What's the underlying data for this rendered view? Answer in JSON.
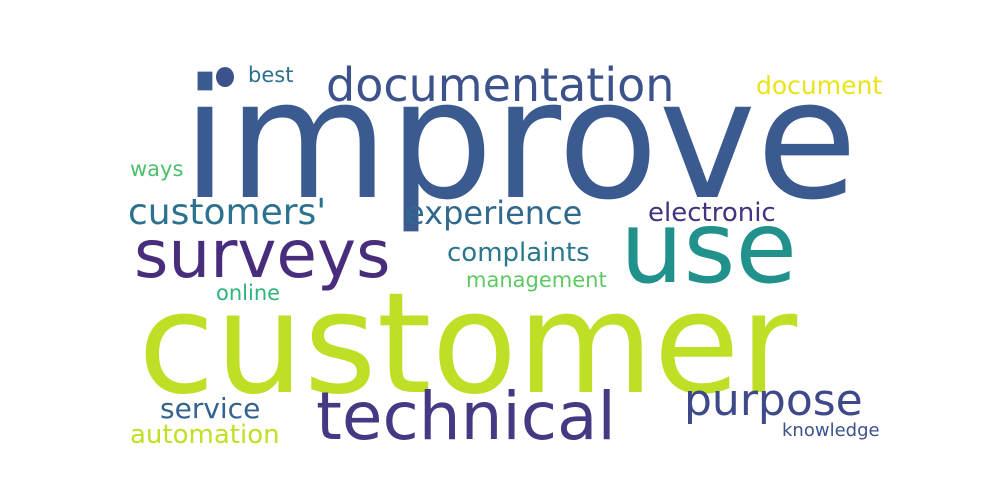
{
  "words": [
    {
      "text": "improve",
      "color": "#3b5a8f"
    },
    {
      "text": "customer",
      "color": "#bddf26"
    },
    {
      "text": "use",
      "color": "#21918c"
    },
    {
      "text": "technical",
      "color": "#443983"
    },
    {
      "text": "surveys",
      "color": "#472d7b"
    },
    {
      "text": "documentation",
      "color": "#3b528b"
    },
    {
      "text": "purpose",
      "color": "#3e4989"
    },
    {
      "text": "customers'",
      "color": "#2c728e"
    },
    {
      "text": "experience",
      "color": "#31688e"
    },
    {
      "text": "complaints",
      "color": "#2a788e"
    },
    {
      "text": "electronic",
      "color": "#46327e"
    },
    {
      "text": "service",
      "color": "#33638d"
    },
    {
      "text": "automation",
      "color": "#c2df23"
    },
    {
      "text": "document",
      "color": "#e8e419"
    },
    {
      "text": "management",
      "color": "#5ec962"
    },
    {
      "text": "online",
      "color": "#2fb47c"
    },
    {
      "text": "ways",
      "color": "#4ac16d"
    },
    {
      "text": "best",
      "color": "#2d708e"
    },
    {
      "text": "knowledge",
      "color": "#3b528b"
    }
  ],
  "stray_dot": {
    "color": "#3b528b"
  }
}
